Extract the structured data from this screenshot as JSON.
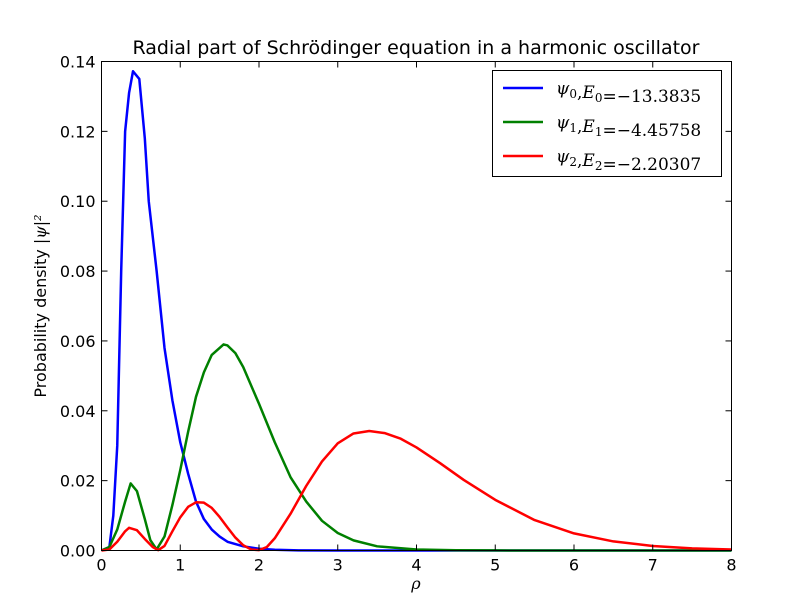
{
  "chart_data": {
    "type": "line",
    "title": "Radial part of Schrödinger equation in a harmonic oscillator",
    "xlabel": "ρ",
    "ylabel_text": "Probability density ",
    "ylabel_math": "|ψ|²",
    "xlim": [
      0,
      8
    ],
    "ylim": [
      0,
      0.14
    ],
    "x_ticks": [
      "0",
      "1",
      "2",
      "3",
      "4",
      "5",
      "6",
      "7",
      "8"
    ],
    "y_ticks": [
      "0.00",
      "0.02",
      "0.04",
      "0.06",
      "0.08",
      "0.10",
      "0.12",
      "0.14"
    ],
    "grid": false,
    "legend_position": "top-right",
    "series": [
      {
        "name": "ψ₀, E₀ = −13.3835",
        "color": "#0000ff",
        "x": [
          0,
          0.1,
          0.15,
          0.2,
          0.25,
          0.3,
          0.35,
          0.4,
          0.48,
          0.55,
          0.6,
          0.7,
          0.8,
          0.9,
          1.0,
          1.1,
          1.2,
          1.3,
          1.4,
          1.5,
          1.6,
          1.8,
          2.0,
          2.2,
          2.5,
          3,
          4,
          5,
          6,
          7,
          8
        ],
        "y": [
          0,
          0.001,
          0.01,
          0.03,
          0.08,
          0.12,
          0.131,
          0.1372,
          0.135,
          0.118,
          0.1,
          0.08,
          0.058,
          0.043,
          0.031,
          0.022,
          0.014,
          0.009,
          0.006,
          0.004,
          0.0025,
          0.0012,
          0.0005,
          0.0002,
          5e-05,
          0,
          0,
          0,
          0,
          0,
          0
        ]
      },
      {
        "name": "ψ₁, E₁ = −4.45758",
        "color": "#008000",
        "x": [
          0,
          0.1,
          0.2,
          0.3,
          0.37,
          0.45,
          0.55,
          0.62,
          0.7,
          0.8,
          0.9,
          1.0,
          1.1,
          1.2,
          1.3,
          1.4,
          1.5,
          1.55,
          1.6,
          1.7,
          1.8,
          2.0,
          2.2,
          2.4,
          2.6,
          2.8,
          3.0,
          3.2,
          3.5,
          4.0,
          4.5,
          5,
          6,
          7,
          8
        ],
        "y": [
          0,
          0.001,
          0.006,
          0.014,
          0.0192,
          0.017,
          0.009,
          0.003,
          0.0003,
          0.004,
          0.013,
          0.023,
          0.034,
          0.044,
          0.051,
          0.056,
          0.058,
          0.059,
          0.0587,
          0.0565,
          0.0525,
          0.042,
          0.031,
          0.021,
          0.014,
          0.0085,
          0.005,
          0.0029,
          0.0012,
          0.0003,
          8e-05,
          2e-05,
          0,
          0,
          0
        ]
      },
      {
        "name": "ψ₂, E₂ = −2.20307",
        "color": "#ff0000",
        "x": [
          0,
          0.1,
          0.2,
          0.3,
          0.35,
          0.45,
          0.55,
          0.65,
          0.72,
          0.8,
          0.9,
          1.0,
          1.1,
          1.2,
          1.3,
          1.4,
          1.5,
          1.6,
          1.7,
          1.8,
          1.9,
          2.0,
          2.1,
          2.2,
          2.4,
          2.6,
          2.8,
          3.0,
          3.2,
          3.4,
          3.6,
          3.8,
          4.0,
          4.3,
          4.6,
          5.0,
          5.5,
          6.0,
          6.5,
          7.0,
          7.5,
          8.0
        ],
        "y": [
          0,
          0.0003,
          0.0025,
          0.0055,
          0.0065,
          0.0058,
          0.0033,
          0.001,
          0.0001,
          0.0013,
          0.0055,
          0.0095,
          0.0125,
          0.0138,
          0.0137,
          0.0122,
          0.0096,
          0.0066,
          0.0037,
          0.0015,
          0.0003,
          0.0001,
          0.001,
          0.0035,
          0.0105,
          0.0185,
          0.0255,
          0.0307,
          0.0335,
          0.0342,
          0.0336,
          0.032,
          0.0295,
          0.025,
          0.0202,
          0.0145,
          0.0087,
          0.0049,
          0.0026,
          0.0013,
          0.0006,
          0.0003
        ]
      }
    ]
  },
  "legend": [
    {
      "psi": "ψ",
      "psi_sub": "0",
      "E": "E",
      "E_sub": "0",
      "value": "=−13.3835"
    },
    {
      "psi": "ψ",
      "psi_sub": "1",
      "E": "E",
      "E_sub": "1",
      "value": "=−4.45758"
    },
    {
      "psi": "ψ",
      "psi_sub": "2",
      "E": "E",
      "E_sub": "2",
      "value": "=−2.20307"
    }
  ]
}
